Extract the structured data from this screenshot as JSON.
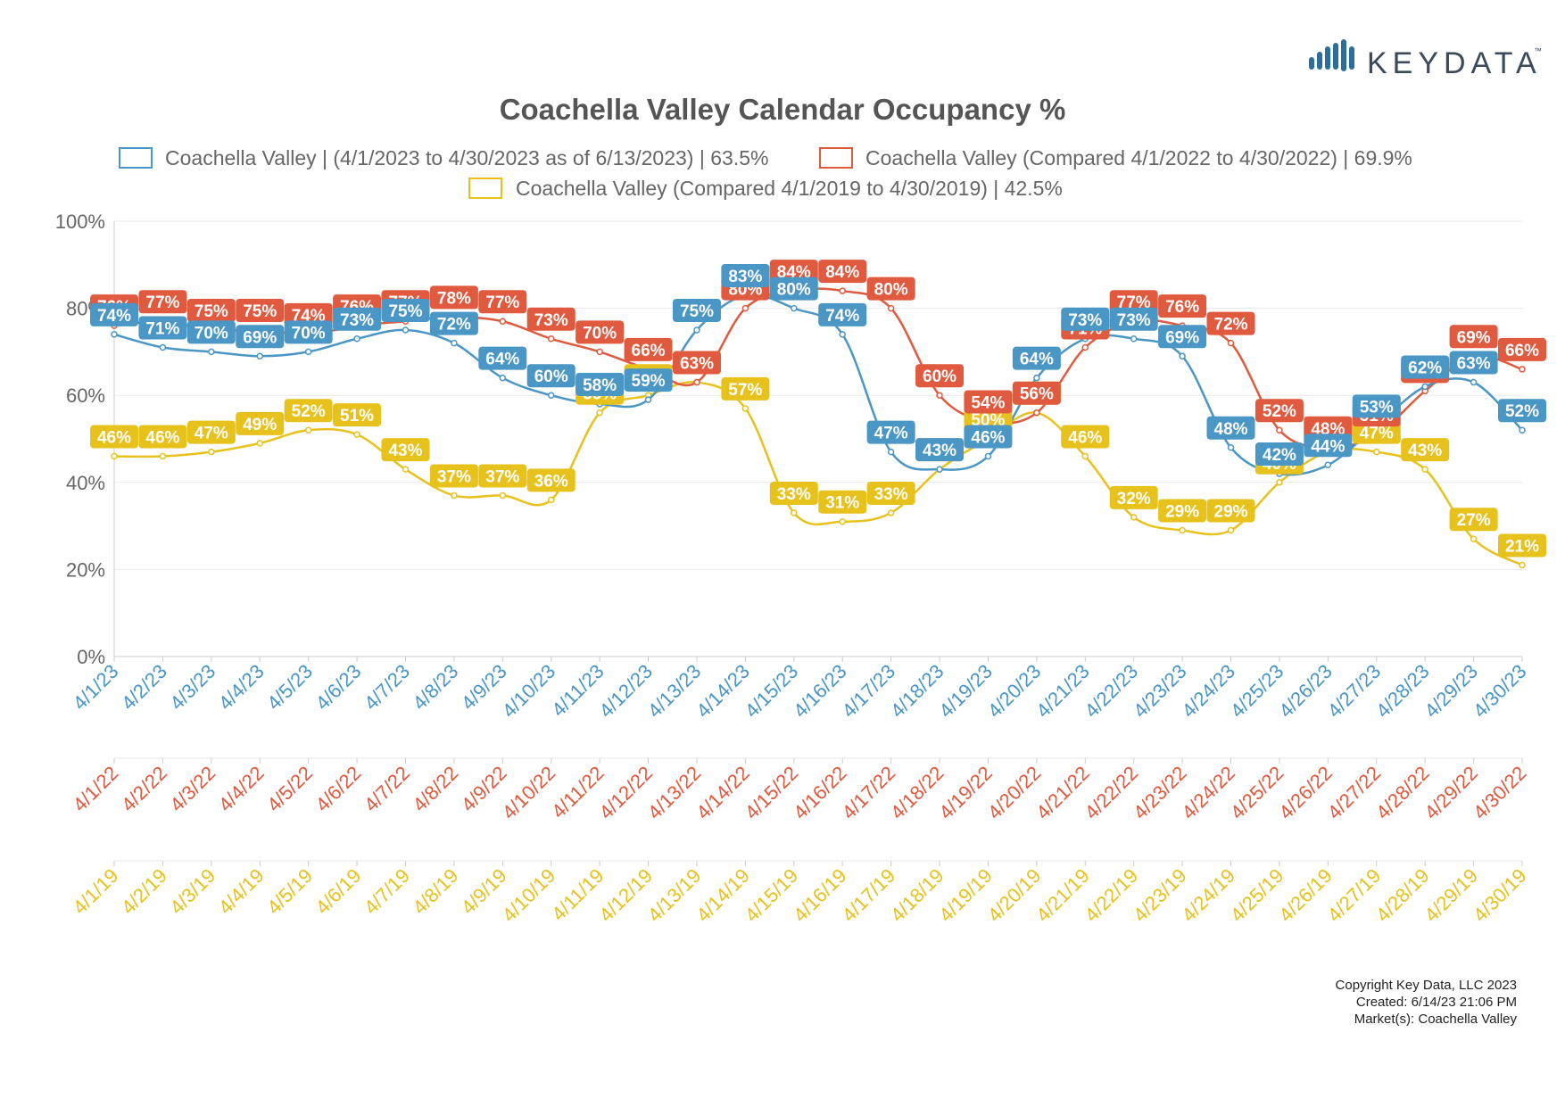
{
  "logo": {
    "text": "KEYDATA",
    "tm": "™",
    "bar_color": "#2c6e9b"
  },
  "chart_data": {
    "type": "line",
    "title": "Coachella Valley Calendar Occupancy %",
    "ylim": [
      0,
      100
    ],
    "yticks": [
      "0%",
      "20%",
      "40%",
      "60%",
      "80%",
      "100%"
    ],
    "grid": true,
    "legend_position": "top",
    "series": [
      {
        "name": "Coachella Valley | (4/1/2023 to 4/30/2023 as of 6/13/2023) | 63.5%",
        "color": "#4a96c4",
        "x_labels": [
          "4/1/23",
          "4/2/23",
          "4/3/23",
          "4/4/23",
          "4/5/23",
          "4/6/23",
          "4/7/23",
          "4/8/23",
          "4/9/23",
          "4/10/23",
          "4/11/23",
          "4/12/23",
          "4/13/23",
          "4/14/23",
          "4/15/23",
          "4/16/23",
          "4/17/23",
          "4/18/23",
          "4/19/23",
          "4/20/23",
          "4/21/23",
          "4/22/23",
          "4/23/23",
          "4/24/23",
          "4/25/23",
          "4/26/23",
          "4/27/23",
          "4/28/23",
          "4/29/23",
          "4/30/23"
        ],
        "values": [
          74,
          71,
          70,
          69,
          70,
          73,
          75,
          72,
          64,
          60,
          58,
          59,
          75,
          83,
          80,
          74,
          47,
          43,
          46,
          64,
          73,
          73,
          69,
          48,
          42,
          44,
          53,
          62,
          63,
          52
        ]
      },
      {
        "name": "Coachella Valley (Compared 4/1/2022 to 4/30/2022) | 69.9%",
        "color": "#e05a3f",
        "x_labels": [
          "4/1/22",
          "4/2/22",
          "4/3/22",
          "4/4/22",
          "4/5/22",
          "4/6/22",
          "4/7/22",
          "4/8/22",
          "4/9/22",
          "4/10/22",
          "4/11/22",
          "4/12/22",
          "4/13/22",
          "4/14/22",
          "4/15/22",
          "4/16/22",
          "4/17/22",
          "4/18/22",
          "4/19/22",
          "4/20/22",
          "4/21/22",
          "4/22/22",
          "4/23/22",
          "4/24/22",
          "4/25/22",
          "4/26/22",
          "4/27/22",
          "4/28/22",
          "4/29/22",
          "4/30/22"
        ],
        "values": [
          76,
          77,
          75,
          75,
          74,
          76,
          77,
          78,
          77,
          73,
          70,
          66,
          63,
          80,
          84,
          84,
          80,
          60,
          54,
          56,
          71,
          77,
          76,
          72,
          52,
          48,
          51,
          61,
          69,
          66
        ]
      },
      {
        "name": "Coachella Valley (Compared 4/1/2019 to 4/30/2019) | 42.5%",
        "color": "#e8c21c",
        "x_labels": [
          "4/1/19",
          "4/2/19",
          "4/3/19",
          "4/4/19",
          "4/5/19",
          "4/6/19",
          "4/7/19",
          "4/8/19",
          "4/9/19",
          "4/10/19",
          "4/11/19",
          "4/12/19",
          "4/13/19",
          "4/14/19",
          "4/15/19",
          "4/16/19",
          "4/17/19",
          "4/18/19",
          "4/19/19",
          "4/20/19",
          "4/21/19",
          "4/22/19",
          "4/23/19",
          "4/24/19",
          "4/25/19",
          "4/26/19",
          "4/27/19",
          "4/28/19",
          "4/29/19",
          "4/30/19"
        ],
        "values": [
          46,
          46,
          47,
          49,
          52,
          51,
          43,
          37,
          37,
          36,
          56,
          60,
          63,
          57,
          33,
          31,
          33,
          43,
          50,
          56,
          46,
          32,
          29,
          29,
          40,
          47,
          47,
          43,
          27,
          21
        ]
      }
    ]
  },
  "footer": {
    "copyright": "Copyright Key Data, LLC 2023",
    "created": "Created: 6/14/23 21:06 PM",
    "markets": "Market(s):  Coachella Valley"
  }
}
